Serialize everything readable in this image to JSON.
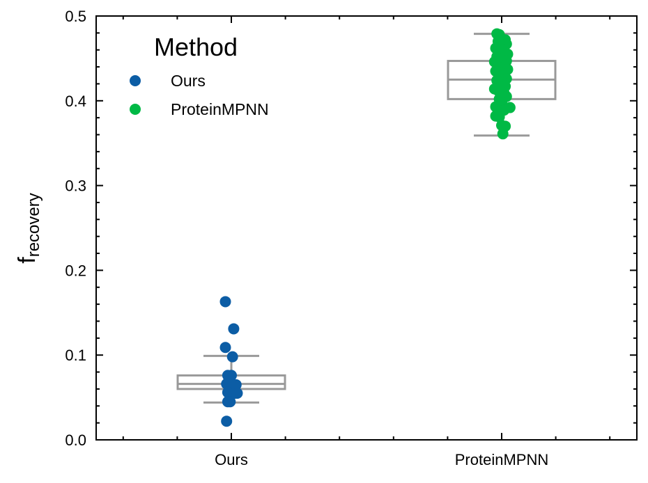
{
  "chart_data": {
    "type": "scatter",
    "subtype": "boxplot-with-stripplot",
    "title": "",
    "xlabel": "",
    "ylabel": {
      "main": "f",
      "subscript": "recovery"
    },
    "categories": [
      "Ours",
      "ProteinMPNN"
    ],
    "ylim": [
      0.0,
      0.5
    ],
    "yticks": [
      "0.0",
      "0.1",
      "0.2",
      "0.3",
      "0.4",
      "0.5"
    ],
    "grid": false,
    "legend": {
      "title": "Method",
      "placement": "top-left",
      "entries": [
        {
          "label": "Ours",
          "color": "#0c5da5"
        },
        {
          "label": "ProteinMPNN",
          "color": "#00b945"
        }
      ]
    },
    "series": [
      {
        "name": "Ours",
        "color": "#0c5da5",
        "box": {
          "whisker_low": 0.044,
          "q1": 0.06,
          "median": 0.066,
          "q3": 0.076,
          "whisker_high": 0.099
        },
        "points": [
          {
            "jitter": -0.05,
            "y": 0.163
          },
          {
            "jitter": 0.02,
            "y": 0.131
          },
          {
            "jitter": -0.05,
            "y": 0.109
          },
          {
            "jitter": 0.01,
            "y": 0.098
          },
          {
            "jitter": -0.03,
            "y": 0.076
          },
          {
            "jitter": 0.0,
            "y": 0.076
          },
          {
            "jitter": -0.02,
            "y": 0.072
          },
          {
            "jitter": -0.04,
            "y": 0.066
          },
          {
            "jitter": -0.01,
            "y": 0.066
          },
          {
            "jitter": 0.04,
            "y": 0.065
          },
          {
            "jitter": 0.01,
            "y": 0.063
          },
          {
            "jitter": -0.03,
            "y": 0.056
          },
          {
            "jitter": 0.03,
            "y": 0.055
          },
          {
            "jitter": 0.05,
            "y": 0.055
          },
          {
            "jitter": -0.03,
            "y": 0.045
          },
          {
            "jitter": -0.01,
            "y": 0.045
          },
          {
            "jitter": -0.04,
            "y": 0.022
          }
        ]
      },
      {
        "name": "ProteinMPNN",
        "color": "#00b945",
        "box": {
          "whisker_low": 0.359,
          "q1": 0.402,
          "median": 0.425,
          "q3": 0.447,
          "whisker_high": 0.479
        },
        "points": [
          {
            "jitter": -0.04,
            "y": 0.479
          },
          {
            "jitter": -0.02,
            "y": 0.478
          },
          {
            "jitter": 0.03,
            "y": 0.472
          },
          {
            "jitter": -0.03,
            "y": 0.47
          },
          {
            "jitter": 0.04,
            "y": 0.467
          },
          {
            "jitter": 0.0,
            "y": 0.465
          },
          {
            "jitter": -0.05,
            "y": 0.462
          },
          {
            "jitter": 0.02,
            "y": 0.46
          },
          {
            "jitter": -0.02,
            "y": 0.457
          },
          {
            "jitter": 0.05,
            "y": 0.455
          },
          {
            "jitter": -0.04,
            "y": 0.452
          },
          {
            "jitter": 0.01,
            "y": 0.45
          },
          {
            "jitter": 0.04,
            "y": 0.447
          },
          {
            "jitter": -0.06,
            "y": 0.446
          },
          {
            "jitter": -0.01,
            "y": 0.444
          },
          {
            "jitter": 0.03,
            "y": 0.442
          },
          {
            "jitter": -0.03,
            "y": 0.44
          },
          {
            "jitter": 0.05,
            "y": 0.437
          },
          {
            "jitter": -0.05,
            "y": 0.435
          },
          {
            "jitter": 0.0,
            "y": 0.433
          },
          {
            "jitter": 0.02,
            "y": 0.43
          },
          {
            "jitter": -0.02,
            "y": 0.428
          },
          {
            "jitter": 0.04,
            "y": 0.426
          },
          {
            "jitter": -0.04,
            "y": 0.424
          },
          {
            "jitter": 0.01,
            "y": 0.421
          },
          {
            "jitter": -0.01,
            "y": 0.419
          },
          {
            "jitter": 0.03,
            "y": 0.417
          },
          {
            "jitter": -0.06,
            "y": 0.414
          },
          {
            "jitter": -0.03,
            "y": 0.412
          },
          {
            "jitter": 0.02,
            "y": 0.409
          },
          {
            "jitter": 0.04,
            "y": 0.405
          },
          {
            "jitter": -0.02,
            "y": 0.402
          },
          {
            "jitter": 0.0,
            "y": 0.398
          },
          {
            "jitter": -0.05,
            "y": 0.393
          },
          {
            "jitter": 0.07,
            "y": 0.392
          },
          {
            "jitter": 0.02,
            "y": 0.389
          },
          {
            "jitter": -0.03,
            "y": 0.386
          },
          {
            "jitter": -0.05,
            "y": 0.382
          },
          {
            "jitter": -0.02,
            "y": 0.381
          },
          {
            "jitter": 0.0,
            "y": 0.371
          },
          {
            "jitter": 0.03,
            "y": 0.37
          },
          {
            "jitter": 0.01,
            "y": 0.361
          }
        ]
      }
    ]
  }
}
